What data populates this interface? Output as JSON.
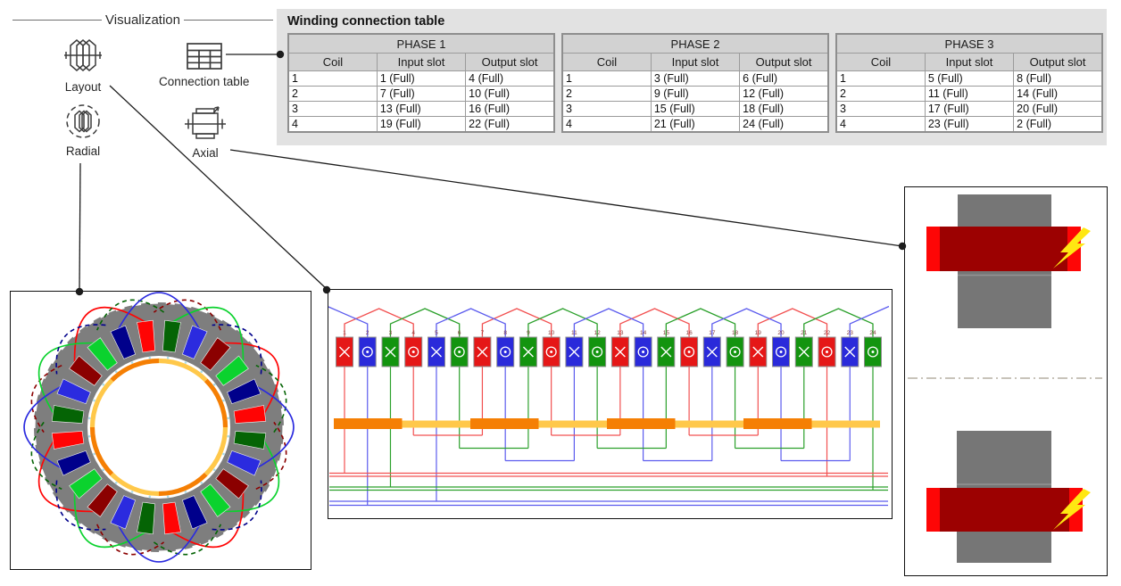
{
  "viz_group": {
    "title": "Visualization",
    "items": [
      {
        "label": "Layout",
        "icon": "layout-icon"
      },
      {
        "label": "Connection table",
        "icon": "connection-table-icon"
      },
      {
        "label": "Radial",
        "icon": "radial-icon"
      },
      {
        "label": "Axial",
        "icon": "axial-icon"
      }
    ]
  },
  "winding_table": {
    "title": "Winding connection table",
    "columns": [
      "Coil",
      "Input slot",
      "Output slot"
    ],
    "phases": [
      {
        "name": "PHASE 1",
        "rows": [
          [
            "1",
            "1 (Full)",
            "4 (Full)"
          ],
          [
            "2",
            "7 (Full)",
            "10 (Full)"
          ],
          [
            "3",
            "13 (Full)",
            "16 (Full)"
          ],
          [
            "4",
            "19 (Full)",
            "22 (Full)"
          ]
        ]
      },
      {
        "name": "PHASE 2",
        "rows": [
          [
            "1",
            "3 (Full)",
            "6 (Full)"
          ],
          [
            "2",
            "9 (Full)",
            "12 (Full)"
          ],
          [
            "3",
            "15 (Full)",
            "18 (Full)"
          ],
          [
            "4",
            "21 (Full)",
            "24 (Full)"
          ]
        ]
      },
      {
        "name": "PHASE 3",
        "rows": [
          [
            "1",
            "5 (Full)",
            "8 (Full)"
          ],
          [
            "2",
            "11 (Full)",
            "14 (Full)"
          ],
          [
            "3",
            "17 (Full)",
            "20 (Full)"
          ],
          [
            "4",
            "23 (Full)",
            "2 (Full)"
          ]
        ]
      }
    ]
  },
  "winding": {
    "slot_count": 24,
    "pole_count": 8,
    "in_symbol": "cross",
    "out_symbol": "dot",
    "phases": [
      {
        "id": 1,
        "coils": [
          [
            1,
            4
          ],
          [
            7,
            10
          ],
          [
            13,
            16
          ],
          [
            19,
            22
          ]
        ]
      },
      {
        "id": 2,
        "coils": [
          [
            3,
            6
          ],
          [
            9,
            12
          ],
          [
            15,
            18
          ],
          [
            21,
            24
          ]
        ]
      },
      {
        "id": 3,
        "coils": [
          [
            5,
            8
          ],
          [
            11,
            14
          ],
          [
            17,
            20
          ],
          [
            23,
            2
          ]
        ]
      }
    ]
  },
  "colors": {
    "phase_fill": [
      "#e51717",
      "#13940f",
      "#2a2ada"
    ],
    "phase_line": [
      "#f25050",
      "#2ba02b",
      "#5c5cee"
    ],
    "phase_bright": [
      "#ff0404",
      "#0bd22e",
      "#2b2bdf"
    ],
    "phase_dark": [
      "#8b0000",
      "#056405",
      "#00008b"
    ],
    "magnet_orange": "#f57f04",
    "magnet_yellow": "#ffc84a",
    "stator_gray": "#7e7e7e",
    "core_gray": "#767676",
    "coil_dark_red": "#9c0101",
    "coil_red": "#fe0606",
    "bolt_yellow": "#ffe712",
    "slot_number_color": "#8a4040",
    "connector_black": "#1c1c1c"
  }
}
